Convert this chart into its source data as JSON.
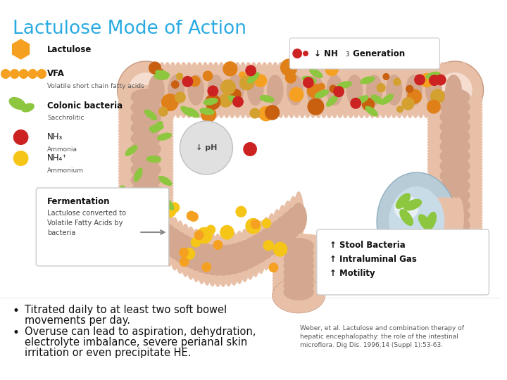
{
  "title": "Lactulose Mode of Action",
  "title_color": "#29abe2",
  "title_fontsize": 19,
  "bg_color": "#ffffff",
  "bullet1_line1": "Titrated daily to at least two soft bowel",
  "bullet1_line2": "movements per day.",
  "bullet2_line1": "Overuse can lead to aspiration, dehydration,",
  "bullet2_line2": "electrolyte imbalance, severe perianal skin",
  "bullet2_line3": "irritation or even precipitate HE.",
  "bullet_fontsize": 10.5,
  "bullet_color": "#111111",
  "reference_text": "Weber, et al. Lactulose and combination therapy of\nhepatic encephalopathy: the role of the intestinal\nmicroflora. Dig Dis. 1996;14 (Suppl 1):53-63.",
  "reference_fontsize": 6.5,
  "reference_color": "#555555",
  "colon_fill": "#e8c0a8",
  "colon_edge": "#c89880",
  "haustra_fill": "#d4a890",
  "cecum_fill_outer": "#b8ccd8",
  "cecum_fill_inner": "#c8dce8",
  "bacteria_green": "#8dc63f",
  "nh3_red": "#cc2222",
  "nh4_yellow": "#f5c518",
  "lactulose_orange": "#f5a020",
  "vfa_orange": "#f5a020",
  "legend_lactulose_color": "#f5a020",
  "legend_vfa_color": "#f5a020",
  "legend_bacteria_color": "#8dc63f",
  "legend_nh3_color": "#cc2222",
  "legend_nh4_color": "#f5c518"
}
